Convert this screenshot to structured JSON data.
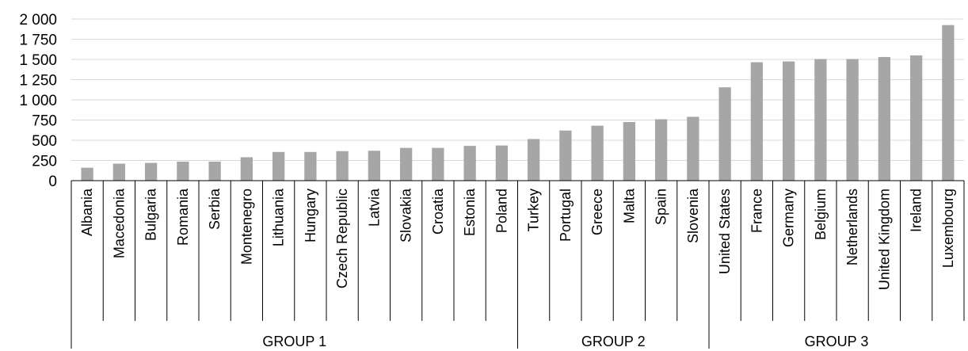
{
  "chart_data": {
    "type": "bar",
    "categories": [
      "Albania",
      "Macedonia",
      "Bulgaria",
      "Romania",
      "Serbia",
      "Montenegro",
      "Lithuania",
      "Hungary",
      "Czech Republic",
      "Latvia",
      "Slovakia",
      "Croatia",
      "Estonia",
      "Poland",
      "Turkey",
      "Portugal",
      "Greece",
      "Malta",
      "Spain",
      "Slovenia",
      "United States",
      "France",
      "Germany",
      "Belgium",
      "Netherlands",
      "United Kingdom",
      "Ireland",
      "Luxembourg"
    ],
    "values": [
      160,
      210,
      220,
      235,
      235,
      290,
      355,
      355,
      365,
      370,
      405,
      405,
      430,
      435,
      515,
      620,
      680,
      725,
      760,
      790,
      1155,
      1465,
      1475,
      1505,
      1505,
      1530,
      1550,
      1925
    ],
    "groups": [
      {
        "label": "GROUP 1",
        "start": 0,
        "end": 13
      },
      {
        "label": "GROUP 2",
        "start": 14,
        "end": 19
      },
      {
        "label": "GROUP 3",
        "start": 20,
        "end": 27
      }
    ],
    "yticks": [
      0,
      250,
      500,
      750,
      1000,
      1250,
      1500,
      1750,
      2000
    ],
    "ytick_labels": [
      "0",
      "250",
      "500",
      "750",
      "1 000",
      "1 250",
      "1 500",
      "1 750",
      "2 000"
    ],
    "ylim": [
      0,
      2000
    ],
    "grid": true,
    "bar_color": "#a6a6a6",
    "title": "",
    "xlabel": "",
    "ylabel": ""
  }
}
